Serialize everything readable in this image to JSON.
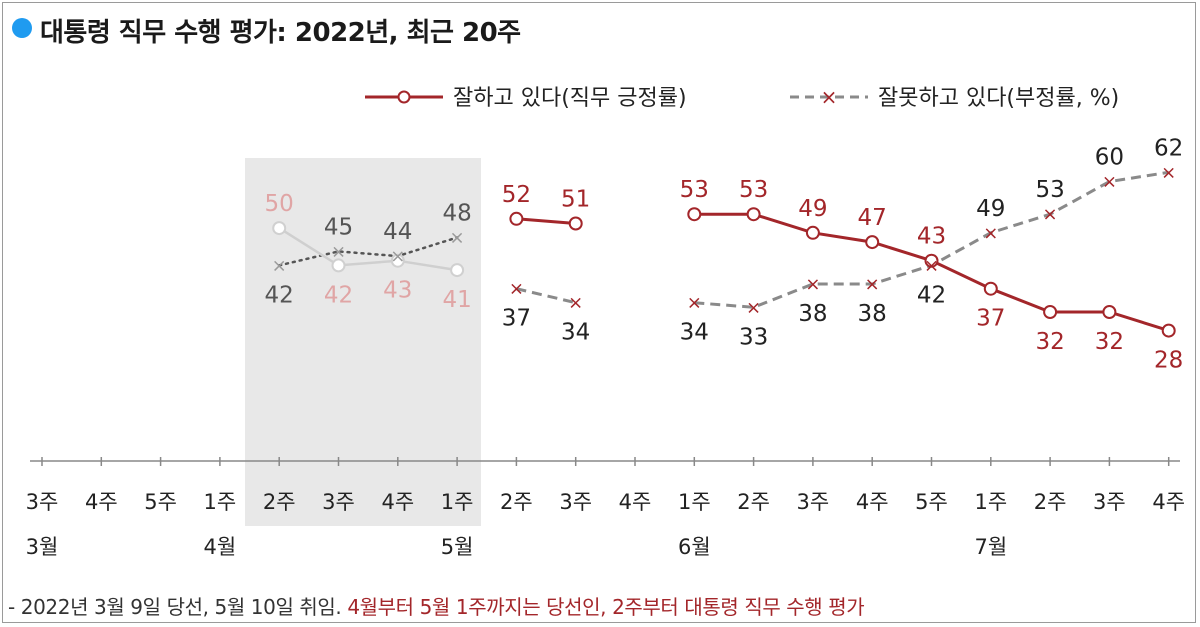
{
  "title": "대통령 직무 수행 평가: 2022년, 최근 20주",
  "legend": {
    "positive": "잘하고 있다(직무 긍정률)",
    "negative": "잘못하고 있다(부정률, %)"
  },
  "colors": {
    "positive": "#a3262a",
    "positive_pre": "#e0a5a5",
    "negative": "#8a8a8a",
    "negative_pre": "#555555",
    "title_dot": "#1f9bf0",
    "shade": "#e8e8e8"
  },
  "footnote": {
    "part1": "- 2022년 3월 9일 당선, 5월 10일 취임.",
    "part2": "4월부터 5월 1주까지는 당선인, 2주부터 대통령 직무 수행 평가"
  },
  "chart_data": {
    "type": "line",
    "categories": [
      "3주",
      "4주",
      "5주",
      "1주",
      "2주",
      "3주",
      "4주",
      "1주",
      "2주",
      "3주",
      "4주",
      "1주",
      "2주",
      "3주",
      "4주",
      "5주",
      "1주",
      "2주",
      "3주",
      "4주"
    ],
    "month_labels": [
      "3월",
      "4월",
      "5월",
      "6월",
      "7월"
    ],
    "series": [
      {
        "name": "잘하고 있다(직무 긍정률)",
        "values": [
          null,
          null,
          null,
          null,
          50,
          42,
          43,
          41,
          52,
          51,
          null,
          53,
          53,
          49,
          47,
          43,
          37,
          32,
          32,
          28
        ]
      },
      {
        "name": "잘못하고 있다(부정률, %)",
        "values": [
          null,
          null,
          null,
          null,
          42,
          45,
          44,
          48,
          37,
          34,
          null,
          34,
          33,
          38,
          38,
          42,
          49,
          53,
          60,
          62
        ]
      }
    ],
    "ylim": [
      0,
      70
    ],
    "shaded_period": "4월 2주 – 5월 1주 (당선인)",
    "legend_position": "top-right"
  }
}
